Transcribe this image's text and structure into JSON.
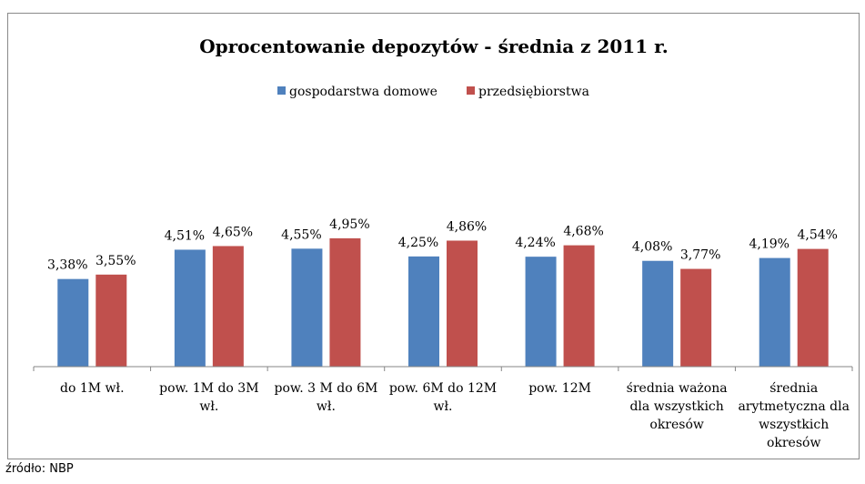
{
  "source_note": "źródło: NBP",
  "chart_data": {
    "type": "bar",
    "title": "Oprocentowanie depozytów - średnia z 2011 r.",
    "xlabel": "",
    "ylabel": "",
    "ylim": [
      0,
      6
    ],
    "grid": false,
    "legend": {
      "position": "top"
    },
    "categories": [
      [
        "do 1M wł."
      ],
      [
        "pow. 1M do 3M",
        "wł."
      ],
      [
        "pow. 3 M do 6M",
        "wł."
      ],
      [
        "pow. 6M do 12M",
        "wł."
      ],
      [
        "pow. 12M"
      ],
      [
        "średnia ważona",
        "dla wszystkich",
        "okresów"
      ],
      [
        "średnia",
        "arytmetyczna dla",
        "wszystkich",
        "okresów"
      ]
    ],
    "series": [
      {
        "name": "gospodarstwa domowe",
        "color": "#4f81bd",
        "values": [
          3.38,
          4.51,
          4.55,
          4.25,
          4.24,
          4.08,
          4.19
        ],
        "labels": [
          "3,38%",
          "4,51%",
          "4,55%",
          "4,25%",
          "4,24%",
          "4,08%",
          "4,19%"
        ]
      },
      {
        "name": "przedsiębiorstwa",
        "color": "#c0504d",
        "values": [
          3.55,
          4.65,
          4.95,
          4.86,
          4.68,
          3.77,
          4.54
        ],
        "labels": [
          "3,55%",
          "4,65%",
          "4,95%",
          "4,86%",
          "4,68%",
          "3,77%",
          "4,54%"
        ]
      }
    ]
  }
}
